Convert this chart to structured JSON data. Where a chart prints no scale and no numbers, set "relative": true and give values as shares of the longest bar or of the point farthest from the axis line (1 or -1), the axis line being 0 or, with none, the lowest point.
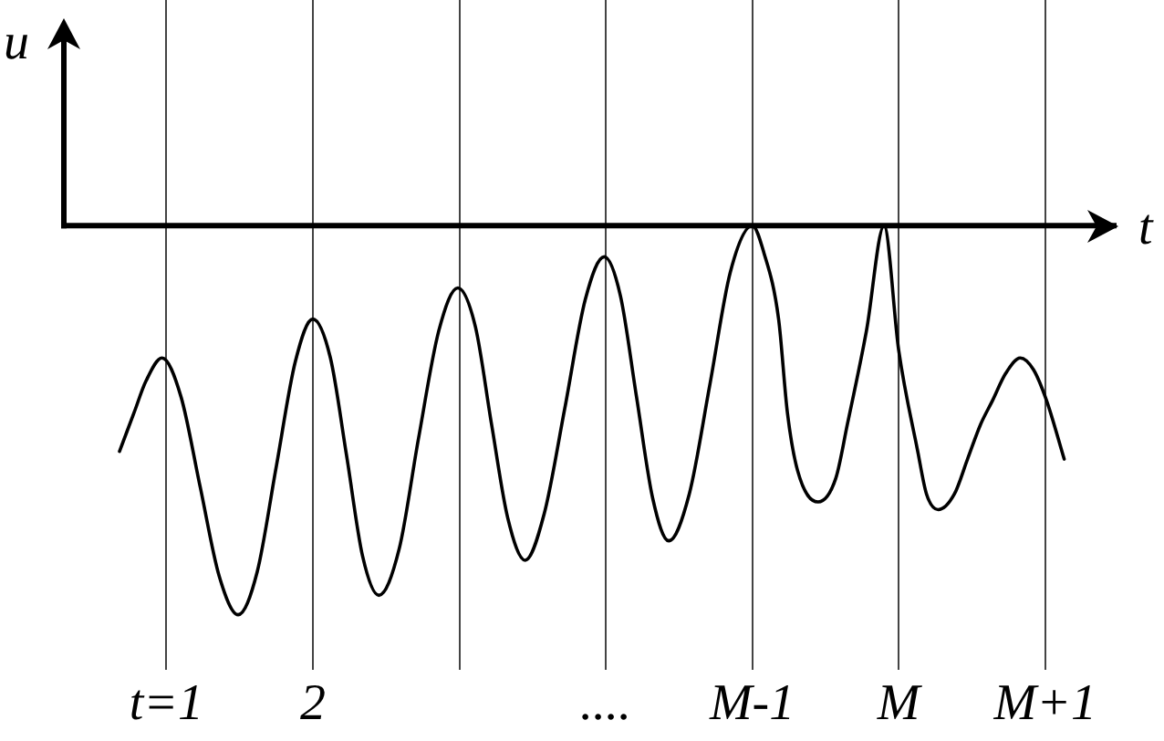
{
  "chart_data": {
    "type": "line",
    "xlabel": "t",
    "ylabel": "u",
    "relative": true,
    "xlim": [
      0.3,
      7.5
    ],
    "xticks": [
      {
        "value": 1,
        "label": "t=1"
      },
      2,
      {
        "value": 3,
        "label": null
      },
      {
        "value": 4,
        "label": "...."
      },
      {
        "value": 5,
        "label": "M-1"
      },
      {
        "value": 6,
        "label": "M"
      },
      {
        "value": 7,
        "label": "M+1"
      }
    ],
    "grid": "x",
    "color": "#000000",
    "x": [
      0.68,
      0.78,
      0.86,
      0.97,
      1.1,
      1.23,
      1.36,
      1.49,
      1.62,
      1.75,
      1.88,
      2.0,
      2.12,
      2.23,
      2.34,
      2.45,
      2.59,
      2.72,
      2.86,
      2.99,
      3.11,
      3.22,
      3.33,
      3.45,
      3.58,
      3.72,
      3.86,
      3.99,
      4.1,
      4.21,
      4.32,
      4.43,
      4.57,
      4.71,
      4.85,
      5.0,
      5.08,
      5.18,
      5.24,
      5.31,
      5.45,
      5.57,
      5.65,
      5.78,
      5.9,
      6.0,
      6.13,
      6.19,
      6.27,
      6.38,
      6.47,
      6.56,
      6.64,
      6.73,
      6.83,
      6.92,
      7.01,
      7.13
    ],
    "values": [
      -0.58,
      -0.48,
      -0.4,
      -0.34,
      -0.44,
      -0.67,
      -0.9,
      -1,
      -0.89,
      -0.62,
      -0.35,
      -0.24,
      -0.34,
      -0.59,
      -0.85,
      -0.95,
      -0.83,
      -0.55,
      -0.27,
      -0.16,
      -0.26,
      -0.51,
      -0.75,
      -0.86,
      -0.74,
      -0.47,
      -0.19,
      -0.08,
      -0.18,
      -0.44,
      -0.7,
      -0.81,
      -0.69,
      -0.41,
      -0.12,
      0,
      -0.07,
      -0.24,
      -0.48,
      -0.63,
      -0.71,
      -0.65,
      -0.51,
      -0.27,
      0,
      -0.32,
      -0.58,
      -0.69,
      -0.73,
      -0.69,
      -0.6,
      -0.51,
      -0.45,
      -0.38,
      -0.34,
      -0.37,
      -0.45,
      -0.6
    ]
  }
}
